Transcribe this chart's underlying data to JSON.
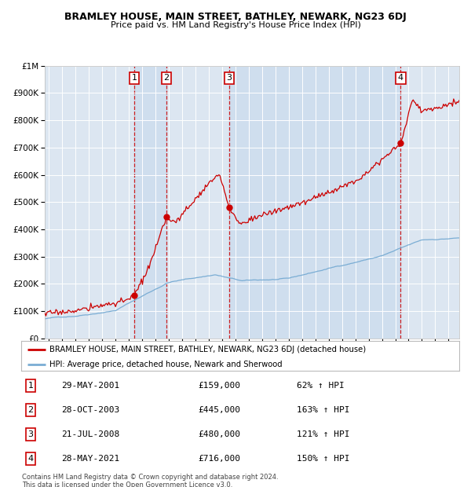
{
  "title": "BRAMLEY HOUSE, MAIN STREET, BATHLEY, NEWARK, NG23 6DJ",
  "subtitle": "Price paid vs. HM Land Registry's House Price Index (HPI)",
  "background_color": "#dce6f1",
  "plot_bg_color": "#dce6f1",
  "transactions": [
    {
      "num": 1,
      "price": 159000,
      "x": 2001.41
    },
    {
      "num": 2,
      "price": 445000,
      "x": 2003.83
    },
    {
      "num": 3,
      "price": 480000,
      "x": 2008.55
    },
    {
      "num": 4,
      "price": 716000,
      "x": 2021.41
    }
  ],
  "legend_line1": "BRAMLEY HOUSE, MAIN STREET, BATHLEY, NEWARK, NG23 6DJ (detached house)",
  "legend_line2": "HPI: Average price, detached house, Newark and Sherwood",
  "footer": "Contains HM Land Registry data © Crown copyright and database right 2024.\nThis data is licensed under the Open Government Licence v3.0.",
  "table_rows": [
    {
      "num": 1,
      "date": "29-MAY-2001",
      "price": "£159,000",
      "pct": "62% ↑ HPI"
    },
    {
      "num": 2,
      "date": "28-OCT-2003",
      "price": "£445,000",
      "pct": "163% ↑ HPI"
    },
    {
      "num": 3,
      "date": "21-JUL-2008",
      "price": "£480,000",
      "pct": "121% ↑ HPI"
    },
    {
      "num": 4,
      "date": "28-MAY-2021",
      "price": "£716,000",
      "pct": "150% ↑ HPI"
    }
  ],
  "ylim": [
    0,
    1000000
  ],
  "yticks": [
    0,
    100000,
    200000,
    300000,
    400000,
    500000,
    600000,
    700000,
    800000,
    900000,
    1000000
  ],
  "ytick_labels": [
    "£0",
    "£100K",
    "£200K",
    "£300K",
    "£400K",
    "£500K",
    "£600K",
    "£700K",
    "£800K",
    "£900K",
    "£1M"
  ],
  "xlim_start": 1994.7,
  "xlim_end": 2025.8,
  "red_color": "#cc0000",
  "blue_color": "#7aadd4",
  "span_color": "#c5d8ec"
}
